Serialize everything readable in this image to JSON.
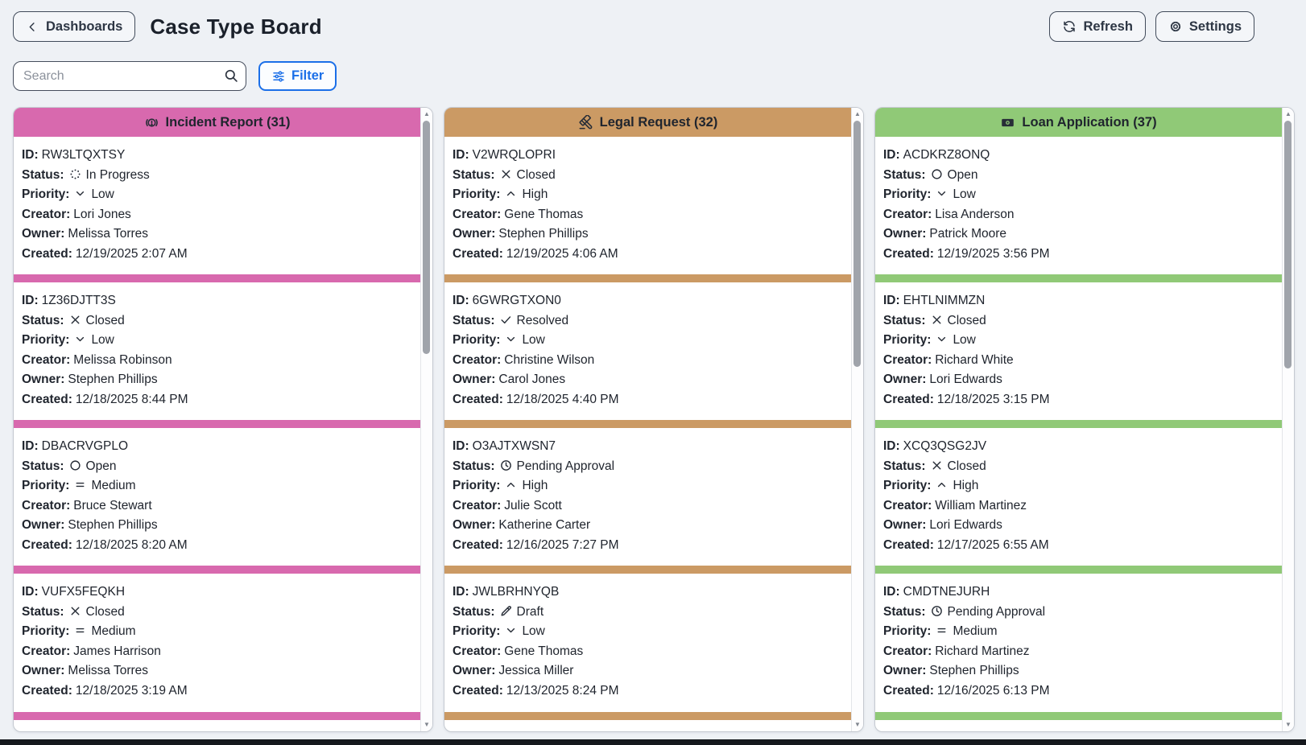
{
  "header": {
    "back_label": "Dashboards",
    "title": "Case Type Board",
    "refresh_label": "Refresh",
    "settings_label": "Settings"
  },
  "toolbar": {
    "search_placeholder": "Search",
    "filter_label": "Filter"
  },
  "field_labels": {
    "id": "ID:",
    "status": "Status:",
    "priority": "Priority:",
    "creator": "Creator:",
    "owner": "Owner:",
    "created": "Created:"
  },
  "colors": {
    "incident_pink": "#d869ae",
    "legal_tan": "#cb9a64",
    "loan_green": "#90c977",
    "accent_blue": "#1b6fe8"
  },
  "board": {
    "columns": [
      {
        "title": "Incident Report (31)",
        "icon": "incident-alert-icon",
        "color": "#d869ae",
        "cards": [
          {
            "id": "RW3LTQXTSY",
            "status": "In Progress",
            "status_icon": "spinner-icon",
            "priority": "Low",
            "priority_icon": "chevron-down-icon",
            "creator": "Lori Jones",
            "owner": "Melissa Torres",
            "created": "12/19/2025 2:07 AM"
          },
          {
            "id": "1Z36DJTT3S",
            "status": "Closed",
            "status_icon": "x-icon",
            "priority": "Low",
            "priority_icon": "chevron-down-icon",
            "creator": "Melissa Robinson",
            "owner": "Stephen Phillips",
            "created": "12/18/2025 8:44 PM"
          },
          {
            "id": "DBACRVGPLO",
            "status": "Open",
            "status_icon": "circle-icon",
            "priority": "Medium",
            "priority_icon": "equals-icon",
            "creator": "Bruce Stewart",
            "owner": "Stephen Phillips",
            "created": "12/18/2025 8:20 AM"
          },
          {
            "id": "VUFX5FEQKH",
            "status": "Closed",
            "status_icon": "x-icon",
            "priority": "Medium",
            "priority_icon": "equals-icon",
            "creator": "James Harrison",
            "owner": "Melissa Torres",
            "created": "12/18/2025 3:19 AM"
          }
        ]
      },
      {
        "title": "Legal Request (32)",
        "icon": "gavel-icon",
        "color": "#cb9a64",
        "cards": [
          {
            "id": "V2WRQLOPRI",
            "status": "Closed",
            "status_icon": "x-icon",
            "priority": "High",
            "priority_icon": "chevron-up-icon",
            "creator": "Gene Thomas",
            "owner": "Stephen Phillips",
            "created": "12/19/2025 4:06 AM"
          },
          {
            "id": "6GWRGTXON0",
            "status": "Resolved",
            "status_icon": "check-icon",
            "priority": "Low",
            "priority_icon": "chevron-down-icon",
            "creator": "Christine Wilson",
            "owner": "Carol Jones",
            "created": "12/18/2025 4:40 PM"
          },
          {
            "id": "O3AJTXWSN7",
            "status": "Pending Approval",
            "status_icon": "clock-icon",
            "priority": "High",
            "priority_icon": "chevron-up-icon",
            "creator": "Julie Scott",
            "owner": "Katherine Carter",
            "created": "12/16/2025 7:27 PM"
          },
          {
            "id": "JWLBRHNYQB",
            "status": "Draft",
            "status_icon": "pencil-icon",
            "priority": "Low",
            "priority_icon": "chevron-down-icon",
            "creator": "Gene Thomas",
            "owner": "Jessica Miller",
            "created": "12/13/2025 8:24 PM"
          }
        ]
      },
      {
        "title": "Loan Application (37)",
        "icon": "banknote-icon",
        "color": "#90c977",
        "cards": [
          {
            "id": "ACDKRZ8ONQ",
            "status": "Open",
            "status_icon": "circle-icon",
            "priority": "Low",
            "priority_icon": "chevron-down-icon",
            "creator": "Lisa Anderson",
            "owner": "Patrick Moore",
            "created": "12/19/2025 3:56 PM"
          },
          {
            "id": "EHTLNIMMZN",
            "status": "Closed",
            "status_icon": "x-icon",
            "priority": "Low",
            "priority_icon": "chevron-down-icon",
            "creator": "Richard White",
            "owner": "Lori Edwards",
            "created": "12/18/2025 3:15 PM"
          },
          {
            "id": "XCQ3QSG2JV",
            "status": "Closed",
            "status_icon": "x-icon",
            "priority": "High",
            "priority_icon": "chevron-up-icon",
            "creator": "William Martinez",
            "owner": "Lori Edwards",
            "created": "12/17/2025 6:55 AM"
          },
          {
            "id": "CMDTNEJURH",
            "status": "Pending Approval",
            "status_icon": "clock-icon",
            "priority": "Medium",
            "priority_icon": "equals-icon",
            "creator": "Richard Martinez",
            "owner": "Stephen Phillips",
            "created": "12/16/2025 6:13 PM"
          }
        ]
      }
    ]
  }
}
